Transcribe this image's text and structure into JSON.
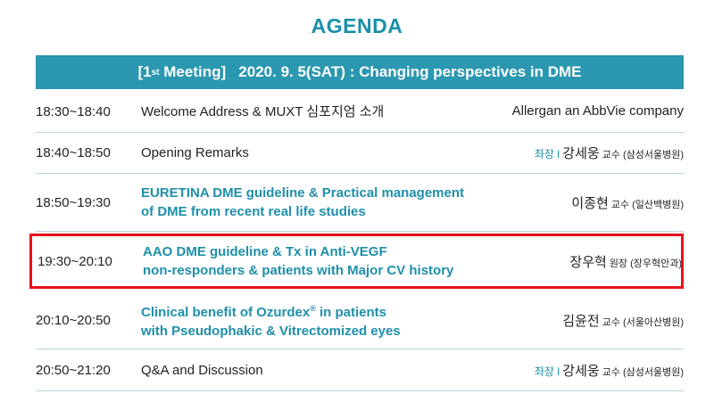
{
  "heading": "AGENDA",
  "banner": {
    "prefix": "[1",
    "sup": "st",
    "rest": " Meeting]   2020. 9. 5(SAT) : Changing perspectives in DME"
  },
  "rows": [
    {
      "time": "18:30~18:40",
      "topic": "Welcome Address & MUXT 심포지엄 소개",
      "company": "Allergan an AbbVie company"
    },
    {
      "time": "18:40~18:50",
      "topic": "Opening Remarks",
      "role": "좌장",
      "sep": "I",
      "name": "강세웅",
      "title": "교수",
      "aff": "(삼성서울병원)"
    },
    {
      "time": "18:50~19:30",
      "topic_line1": "EURETINA DME guideline & Practical management",
      "topic_line2": "of DME from recent real life studies",
      "name": "이종현",
      "title": "교수",
      "aff": "(일산백병원)"
    },
    {
      "time": "19:30~20:10",
      "topic_line1": "AAO DME guideline & Tx in Anti-VEGF",
      "topic_line2": "non-responders & patients with Major CV history",
      "name": "장우혁",
      "title": "원장",
      "aff": "(장우혁안과)"
    },
    {
      "time": "20:10~20:50",
      "topic_line1a": "Clinical benefit of Ozurdex",
      "topic_sup": "®",
      "topic_line1b": " in patients",
      "topic_line2": "with Pseudophakic & Vitrectomized eyes",
      "name": "김윤전",
      "title": "교수",
      "aff": "(서울아산병원)"
    },
    {
      "time": "20:50~21:20",
      "topic": "Q&A and Discussion",
      "role": "좌장",
      "sep": "I",
      "name": "강세웅",
      "title": "교수",
      "aff": "(삼성서울병원)"
    }
  ],
  "colors": {
    "accent": "#1e8fa9",
    "banner": "#2b97b0",
    "highlight": "#e8121b"
  }
}
